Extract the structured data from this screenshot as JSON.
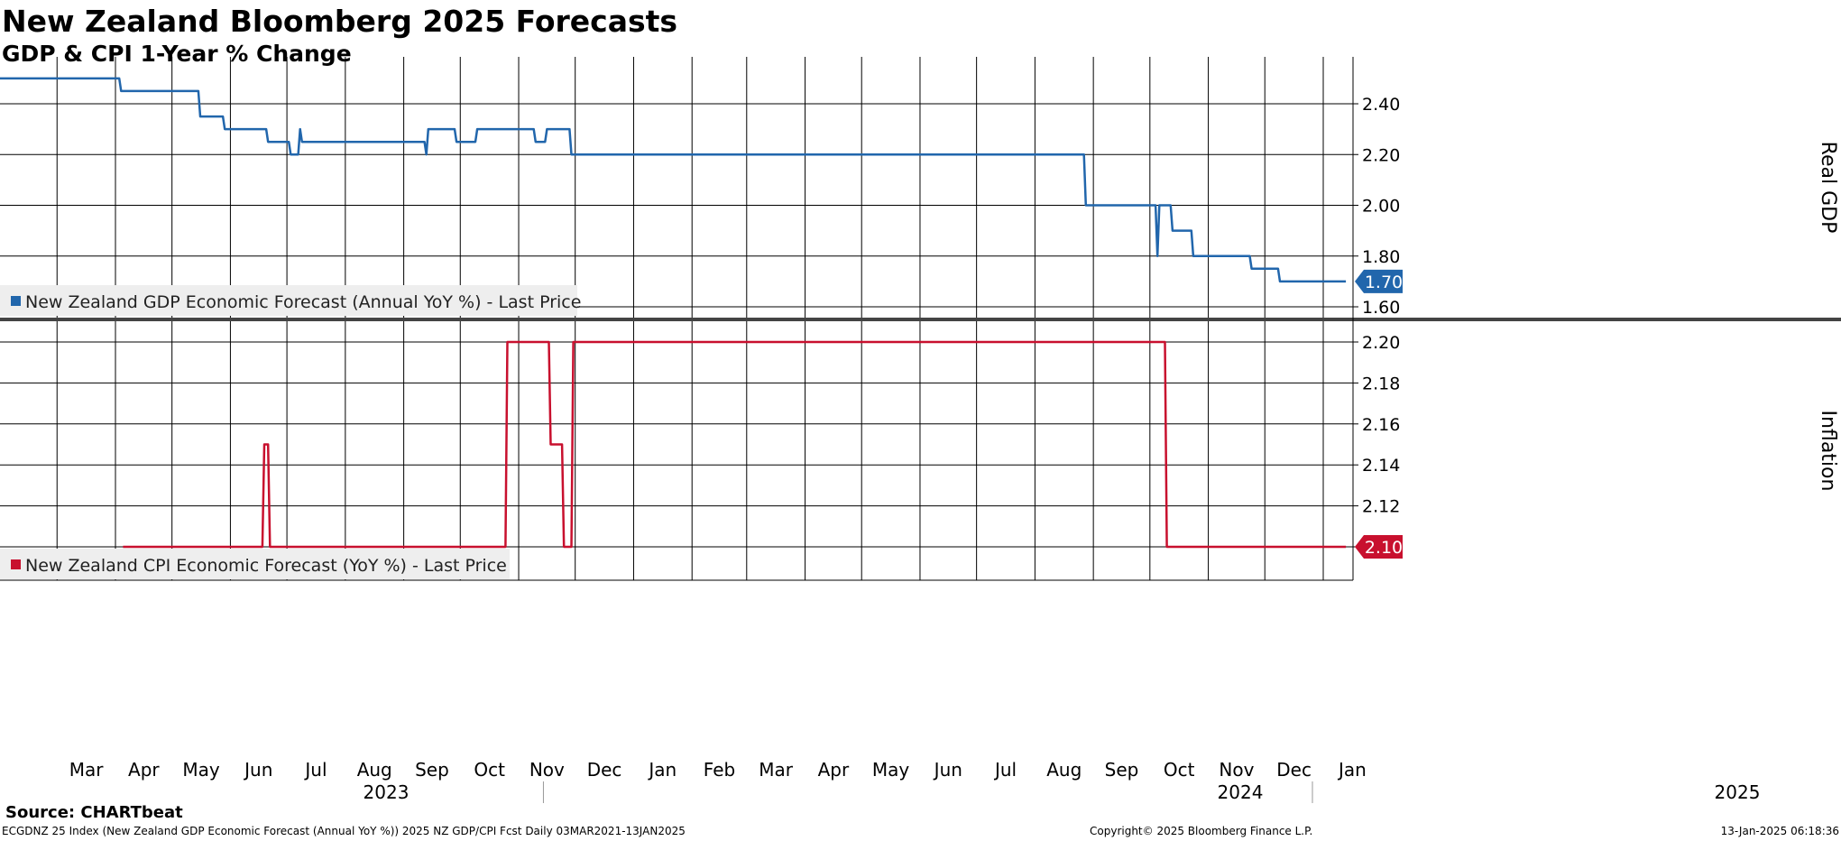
{
  "header": {
    "title": "New Zealand Bloomberg 2025 Forecasts",
    "subtitle": "GDP & CPI 1-Year % Change"
  },
  "footer": {
    "source": "Source: CHARTbeat",
    "ticker_info": "ECGDNZ 25 Index (New Zealand GDP Economic Forecast (Annual YoY %)) 2025 NZ GDP/CPI Fcst  Daily 03MAR2021-13JAN2025",
    "copyright": "Copyright© 2025 Bloomberg Finance L.P.",
    "timestamp": "13-Jan-2025 06:18:36"
  },
  "colors": {
    "gdp": "#2166ac",
    "cpi": "#c8102e",
    "grid": "#000000",
    "legend_bg": "#eeeeee",
    "divider": "#444444"
  },
  "chart_data": [
    {
      "type": "line",
      "panel": "top",
      "ylabel": "Real GDP",
      "ylim": [
        1.55,
        2.5
      ],
      "yticks": [
        "2.40",
        "2.20",
        "2.00",
        "1.80",
        "1.60"
      ],
      "ytick_values": [
        2.4,
        2.2,
        2.0,
        1.8,
        1.6
      ],
      "last_value_label": "1.70",
      "legend_position": "bottom-left",
      "series": [
        {
          "name": "New Zealand GDP Economic Forecast (Annual YoY %) - Last Price",
          "x": [
            "2023-03-01",
            "2023-04-03",
            "2023-04-04",
            "2023-05-15",
            "2023-05-16",
            "2023-05-28",
            "2023-05-29",
            "2023-06-20",
            "2023-06-21",
            "2023-07-02",
            "2023-07-03",
            "2023-07-07",
            "2023-07-08",
            "2023-07-09",
            "2023-07-10",
            "2023-09-12",
            "2023-09-13",
            "2023-09-14",
            "2023-09-15",
            "2023-09-28",
            "2023-09-29",
            "2023-10-09",
            "2023-10-10",
            "2023-11-09",
            "2023-11-10",
            "2023-11-15",
            "2023-11-16",
            "2023-11-28",
            "2023-11-29",
            "2024-08-27",
            "2024-08-28",
            "2024-10-04",
            "2024-10-05",
            "2024-10-06",
            "2024-10-12",
            "2024-10-13",
            "2024-10-23",
            "2024-10-24",
            "2024-11-23",
            "2024-11-24",
            "2024-12-08",
            "2024-12-09",
            "2025-01-13"
          ],
          "y": [
            2.5,
            2.5,
            2.45,
            2.45,
            2.35,
            2.35,
            2.3,
            2.3,
            2.25,
            2.25,
            2.2,
            2.2,
            2.3,
            2.25,
            2.25,
            2.25,
            2.2,
            2.3,
            2.3,
            2.3,
            2.25,
            2.25,
            2.3,
            2.3,
            2.25,
            2.25,
            2.3,
            2.3,
            2.2,
            2.2,
            2.0,
            2.0,
            1.8,
            2.0,
            2.0,
            1.9,
            1.9,
            1.8,
            1.8,
            1.75,
            1.75,
            1.7,
            1.7
          ]
        }
      ]
    },
    {
      "type": "line",
      "panel": "bottom",
      "ylabel": "Inflation",
      "ylim": [
        2.09,
        2.205
      ],
      "yticks": [
        "2.20",
        "2.18",
        "2.16",
        "2.14",
        "2.12",
        "2.10"
      ],
      "ytick_values": [
        2.2,
        2.18,
        2.16,
        2.14,
        2.12,
        2.1
      ],
      "last_value_label": "2.10",
      "legend_position": "bottom-left",
      "series": [
        {
          "name": "New Zealand CPI Economic Forecast (YoY %) - Last Price",
          "x": [
            "2023-04-05",
            "2023-06-18",
            "2023-06-19",
            "2023-06-21",
            "2023-06-22",
            "2023-10-25",
            "2023-10-26",
            "2023-11-17",
            "2023-11-18",
            "2023-11-24",
            "2023-11-25",
            "2023-11-29",
            "2023-11-30",
            "2024-10-09",
            "2024-10-10",
            "2025-01-13"
          ],
          "y": [
            2.1,
            2.1,
            2.15,
            2.15,
            2.1,
            2.1,
            2.2,
            2.2,
            2.15,
            2.15,
            2.1,
            2.1,
            2.2,
            2.2,
            2.1,
            2.1
          ]
        }
      ]
    }
  ],
  "x_axis": {
    "months": [
      {
        "label": "Mar",
        "date": "2023-03-01"
      },
      {
        "label": "Apr",
        "date": "2023-04-01"
      },
      {
        "label": "May",
        "date": "2023-05-01"
      },
      {
        "label": "Jun",
        "date": "2023-06-01"
      },
      {
        "label": "Jul",
        "date": "2023-07-01"
      },
      {
        "label": "Aug",
        "date": "2023-08-01"
      },
      {
        "label": "Sep",
        "date": "2023-09-01"
      },
      {
        "label": "Oct",
        "date": "2023-10-01"
      },
      {
        "label": "Nov",
        "date": "2023-11-01"
      },
      {
        "label": "Dec",
        "date": "2023-12-01"
      },
      {
        "label": "Jan",
        "date": "2024-01-01"
      },
      {
        "label": "Feb",
        "date": "2024-02-01"
      },
      {
        "label": "Mar",
        "date": "2024-03-01"
      },
      {
        "label": "Apr",
        "date": "2024-04-01"
      },
      {
        "label": "May",
        "date": "2024-05-01"
      },
      {
        "label": "Jun",
        "date": "2024-06-01"
      },
      {
        "label": "Jul",
        "date": "2024-07-01"
      },
      {
        "label": "Aug",
        "date": "2024-08-01"
      },
      {
        "label": "Sep",
        "date": "2024-09-01"
      },
      {
        "label": "Oct",
        "date": "2024-10-01"
      },
      {
        "label": "Nov",
        "date": "2024-11-01"
      },
      {
        "label": "Dec",
        "date": "2024-12-01"
      },
      {
        "label": "Jan",
        "date": "2025-01-01"
      }
    ],
    "years": [
      "2023",
      "2024",
      "2025"
    ]
  }
}
